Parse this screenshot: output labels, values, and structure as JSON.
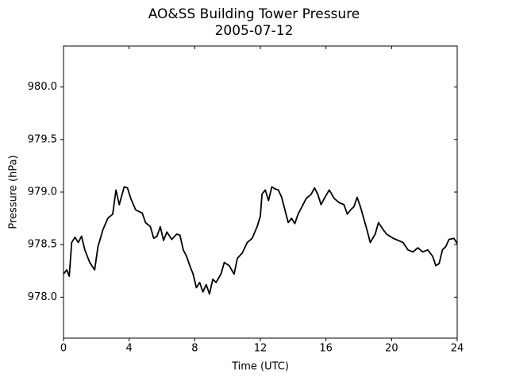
{
  "chart_data": {
    "type": "line",
    "title": "AO&SS Building Tower Pressure",
    "subtitle": "2005-07-12",
    "x_label": "Time (UTC)",
    "y_label": "Pressure (hPa)",
    "color": "#000000",
    "xlim": [
      0,
      24
    ],
    "xticks": [
      0,
      4,
      8,
      12,
      16,
      20,
      24
    ],
    "ylim": [
      977.61,
      980.39
    ],
    "yticks": [
      {
        "value": 978,
        "label": "978.0"
      },
      978.5,
      {
        "value": 979,
        "label": "979.0"
      },
      979.5,
      {
        "value": 980,
        "label": "980.0"
      }
    ],
    "x": [
      0,
      0.2,
      0.35,
      0.5,
      0.7,
      0.9,
      1.1,
      1.3,
      1.6,
      1.9,
      2.1,
      2.4,
      2.7,
      3.0,
      3.2,
      3.4,
      3.7,
      3.9,
      4.1,
      4.4,
      4.8,
      5.0,
      5.3,
      5.5,
      5.7,
      5.9,
      6.1,
      6.3,
      6.6,
      6.9,
      7.1,
      7.3,
      7.5,
      7.7,
      7.9,
      8.1,
      8.3,
      8.5,
      8.7,
      8.9,
      9.1,
      9.3,
      9.6,
      9.8,
      10.1,
      10.4,
      10.6,
      10.9,
      11.2,
      11.5,
      11.8,
      12.0,
      12.1,
      12.3,
      12.5,
      12.7,
      12.9,
      13.1,
      13.3,
      13.5,
      13.7,
      13.9,
      14.1,
      14.3,
      14.5,
      14.8,
      15.1,
      15.3,
      15.5,
      15.7,
      15.9,
      16.2,
      16.5,
      16.8,
      17.1,
      17.3,
      17.5,
      17.7,
      17.9,
      18.1,
      18.3,
      18.5,
      18.7,
      19.0,
      19.2,
      19.5,
      19.7,
      19.9,
      20.1,
      20.4,
      20.7,
      21.0,
      21.3,
      21.6,
      21.9,
      22.2,
      22.5,
      22.7,
      22.9,
      23.1,
      23.3,
      23.5,
      23.8,
      24
    ],
    "values": [
      978.22,
      978.26,
      978.2,
      978.52,
      978.57,
      978.52,
      978.58,
      978.45,
      978.33,
      978.26,
      978.48,
      978.64,
      978.75,
      978.79,
      979.02,
      978.88,
      979.05,
      979.04,
      978.94,
      978.83,
      978.8,
      978.71,
      978.67,
      978.56,
      978.58,
      978.67,
      978.54,
      978.62,
      978.55,
      978.6,
      978.59,
      978.45,
      978.39,
      978.3,
      978.22,
      978.09,
      978.14,
      978.05,
      978.12,
      978.03,
      978.17,
      978.14,
      978.22,
      978.33,
      978.3,
      978.22,
      978.37,
      978.42,
      978.52,
      978.56,
      978.67,
      978.77,
      978.98,
      979.02,
      978.92,
      979.05,
      979.03,
      979.02,
      978.95,
      978.83,
      978.71,
      978.75,
      978.7,
      978.79,
      978.85,
      978.94,
      978.98,
      979.04,
      978.98,
      978.88,
      978.94,
      979.02,
      978.94,
      978.9,
      978.88,
      978.79,
      978.83,
      978.86,
      978.95,
      978.86,
      978.75,
      978.64,
      978.52,
      978.6,
      978.71,
      978.64,
      978.6,
      978.58,
      978.56,
      978.54,
      978.52,
      978.45,
      978.43,
      978.47,
      978.43,
      978.45,
      978.39,
      978.3,
      978.32,
      978.45,
      978.48,
      978.55,
      978.56,
      978.51
    ]
  }
}
